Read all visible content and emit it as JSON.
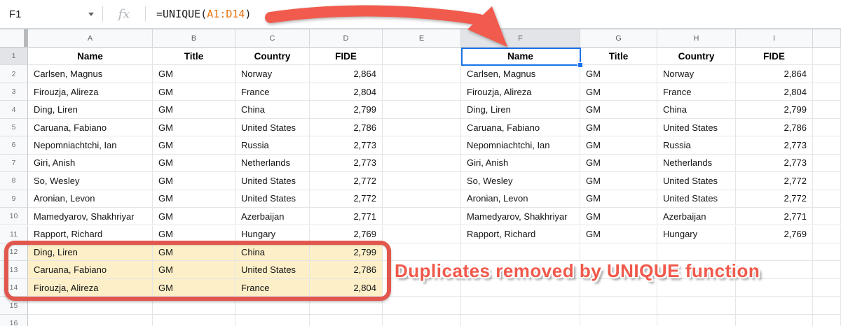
{
  "formula_bar": {
    "cell_reference": "F1",
    "fx_icon": "fx",
    "formula": {
      "prefix": "=UNIQUE(",
      "range": "A1:D14",
      "suffix": ")"
    }
  },
  "grid": {
    "column_letters": [
      "A",
      "B",
      "C",
      "D",
      "E",
      "F",
      "G",
      "H",
      "I"
    ],
    "row_numbers": [
      "1",
      "2",
      "3",
      "4",
      "5",
      "6",
      "7",
      "8",
      "9",
      "10",
      "11",
      "12",
      "13",
      "14",
      "15",
      "16"
    ],
    "header_labels": [
      "Name",
      "Title",
      "Country",
      "FIDE"
    ],
    "selected_cell": "F1",
    "source_table": {
      "start_column": "A",
      "highlighted_rows": [
        12,
        13,
        14
      ],
      "rows": [
        {
          "row": 2,
          "name": "Carlsen, Magnus",
          "title": "GM",
          "country": "Norway",
          "fide": "2,864"
        },
        {
          "row": 3,
          "name": "Firouzja, Alireza",
          "title": "GM",
          "country": "France",
          "fide": "2,804"
        },
        {
          "row": 4,
          "name": "Ding, Liren",
          "title": "GM",
          "country": "China",
          "fide": "2,799"
        },
        {
          "row": 5,
          "name": "Caruana, Fabiano",
          "title": "GM",
          "country": "United States",
          "fide": "2,786"
        },
        {
          "row": 6,
          "name": "Nepomniachtchi, Ian",
          "title": "GM",
          "country": "Russia",
          "fide": "2,773"
        },
        {
          "row": 7,
          "name": "Giri, Anish",
          "title": "GM",
          "country": "Netherlands",
          "fide": "2,773"
        },
        {
          "row": 8,
          "name": "So, Wesley",
          "title": "GM",
          "country": "United States",
          "fide": "2,772"
        },
        {
          "row": 9,
          "name": "Aronian, Levon",
          "title": "GM",
          "country": "United States",
          "fide": "2,772"
        },
        {
          "row": 10,
          "name": "Mamedyarov, Shakhriyar",
          "title": "GM",
          "country": "Azerbaijan",
          "fide": "2,771"
        },
        {
          "row": 11,
          "name": "Rapport, Richard",
          "title": "GM",
          "country": "Hungary",
          "fide": "2,769"
        },
        {
          "row": 12,
          "name": "Ding, Liren",
          "title": "GM",
          "country": "China",
          "fide": "2,799"
        },
        {
          "row": 13,
          "name": "Caruana, Fabiano",
          "title": "GM",
          "country": "United States",
          "fide": "2,786"
        },
        {
          "row": 14,
          "name": "Firouzja, Alireza",
          "title": "GM",
          "country": "France",
          "fide": "2,804"
        }
      ]
    },
    "result_table": {
      "start_column": "F",
      "rows": [
        {
          "row": 2,
          "name": "Carlsen, Magnus",
          "title": "GM",
          "country": "Norway",
          "fide": "2,864"
        },
        {
          "row": 3,
          "name": "Firouzja, Alireza",
          "title": "GM",
          "country": "France",
          "fide": "2,804"
        },
        {
          "row": 4,
          "name": "Ding, Liren",
          "title": "GM",
          "country": "China",
          "fide": "2,799"
        },
        {
          "row": 5,
          "name": "Caruana, Fabiano",
          "title": "GM",
          "country": "United States",
          "fide": "2,786"
        },
        {
          "row": 6,
          "name": "Nepomniachtchi, Ian",
          "title": "GM",
          "country": "Russia",
          "fide": "2,773"
        },
        {
          "row": 7,
          "name": "Giri, Anish",
          "title": "GM",
          "country": "Netherlands",
          "fide": "2,773"
        },
        {
          "row": 8,
          "name": "So, Wesley",
          "title": "GM",
          "country": "United States",
          "fide": "2,772"
        },
        {
          "row": 9,
          "name": "Aronian, Levon",
          "title": "GM",
          "country": "United States",
          "fide": "2,772"
        },
        {
          "row": 10,
          "name": "Mamedyarov, Shakhriyar",
          "title": "GM",
          "country": "Azerbaijan",
          "fide": "2,771"
        },
        {
          "row": 11,
          "name": "Rapport, Richard",
          "title": "GM",
          "country": "Hungary",
          "fide": "2,769"
        }
      ]
    }
  },
  "annotation": {
    "label": "Duplicates removed by UNIQUE function"
  },
  "colors": {
    "selection_blue": "#1a73e8",
    "range_orange": "#e8710a",
    "annotation_red": "#f0594b",
    "highlight_yellow": "#fdefc8"
  }
}
